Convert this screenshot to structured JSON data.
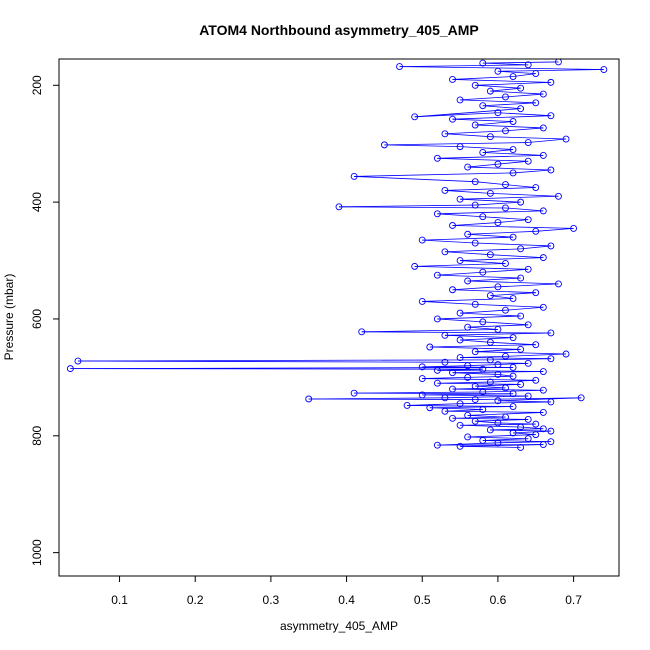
{
  "chart_data": {
    "type": "scatter",
    "connected": true,
    "title": "ATOM4 Northbound asymmetry_405_AMP",
    "xlabel": "asymmetry_405_AMP",
    "ylabel": "Pressure (mbar)",
    "xlim": [
      0.02,
      0.76
    ],
    "ylim": [
      1040,
      155
    ],
    "y_inverted": true,
    "x_ticks": [
      0.1,
      0.2,
      0.3,
      0.4,
      0.5,
      0.6,
      0.7
    ],
    "y_ticks": [
      200,
      400,
      600,
      800,
      1000
    ],
    "grid": false,
    "legend": "none",
    "marker": "open-circle",
    "series": [
      {
        "color": "#0000ff",
        "points": [
          [
            0.63,
            820
          ],
          [
            0.55,
            818
          ],
          [
            0.66,
            815
          ],
          [
            0.52,
            816
          ],
          [
            0.6,
            812
          ],
          [
            0.67,
            810
          ],
          [
            0.58,
            808
          ],
          [
            0.64,
            805
          ],
          [
            0.56,
            802
          ],
          [
            0.65,
            798
          ],
          [
            0.62,
            795
          ],
          [
            0.67,
            792
          ],
          [
            0.59,
            790
          ],
          [
            0.66,
            788
          ],
          [
            0.63,
            785
          ],
          [
            0.55,
            782
          ],
          [
            0.65,
            780
          ],
          [
            0.6,
            778
          ],
          [
            0.57,
            775
          ],
          [
            0.64,
            772
          ],
          [
            0.54,
            770
          ],
          [
            0.61,
            768
          ],
          [
            0.56,
            765
          ],
          [
            0.66,
            760
          ],
          [
            0.53,
            758
          ],
          [
            0.58,
            755
          ],
          [
            0.51,
            752
          ],
          [
            0.62,
            750
          ],
          [
            0.48,
            748
          ],
          [
            0.55,
            745
          ],
          [
            0.67,
            742
          ],
          [
            0.6,
            740
          ],
          [
            0.71,
            735
          ],
          [
            0.57,
            738
          ],
          [
            0.35,
            737
          ],
          [
            0.53,
            735
          ],
          [
            0.64,
            732
          ],
          [
            0.5,
            730
          ],
          [
            0.62,
            728
          ],
          [
            0.41,
            727
          ],
          [
            0.58,
            725
          ],
          [
            0.66,
            722
          ],
          [
            0.54,
            720
          ],
          [
            0.61,
            718
          ],
          [
            0.57,
            715
          ],
          [
            0.63,
            712
          ],
          [
            0.52,
            710
          ],
          [
            0.59,
            708
          ],
          [
            0.65,
            705
          ],
          [
            0.5,
            702
          ],
          [
            0.56,
            700
          ],
          [
            0.62,
            698
          ],
          [
            0.6,
            695
          ],
          [
            0.54,
            692
          ],
          [
            0.66,
            690
          ],
          [
            0.52,
            688
          ],
          [
            0.58,
            686
          ],
          [
            0.035,
            685
          ],
          [
            0.62,
            683
          ],
          [
            0.5,
            682
          ],
          [
            0.56,
            680
          ],
          [
            0.6,
            678
          ],
          [
            0.64,
            676
          ],
          [
            0.53,
            674
          ],
          [
            0.045,
            672
          ],
          [
            0.59,
            670
          ],
          [
            0.67,
            668
          ],
          [
            0.55,
            666
          ],
          [
            0.61,
            664
          ],
          [
            0.69,
            660
          ],
          [
            0.57,
            656
          ],
          [
            0.63,
            652
          ],
          [
            0.51,
            648
          ],
          [
            0.65,
            644
          ],
          [
            0.59,
            640
          ],
          [
            0.55,
            636
          ],
          [
            0.62,
            632
          ],
          [
            0.53,
            628
          ],
          [
            0.67,
            624
          ],
          [
            0.42,
            622
          ],
          [
            0.6,
            618
          ],
          [
            0.56,
            614
          ],
          [
            0.64,
            610
          ],
          [
            0.58,
            605
          ],
          [
            0.52,
            600
          ],
          [
            0.63,
            595
          ],
          [
            0.55,
            590
          ],
          [
            0.61,
            585
          ],
          [
            0.66,
            580
          ],
          [
            0.57,
            575
          ],
          [
            0.5,
            570
          ],
          [
            0.62,
            565
          ],
          [
            0.59,
            560
          ],
          [
            0.65,
            555
          ],
          [
            0.54,
            550
          ],
          [
            0.6,
            545
          ],
          [
            0.68,
            540
          ],
          [
            0.56,
            535
          ],
          [
            0.63,
            530
          ],
          [
            0.52,
            525
          ],
          [
            0.58,
            520
          ],
          [
            0.64,
            515
          ],
          [
            0.49,
            510
          ],
          [
            0.61,
            505
          ],
          [
            0.55,
            500
          ],
          [
            0.66,
            495
          ],
          [
            0.59,
            490
          ],
          [
            0.53,
            485
          ],
          [
            0.63,
            480
          ],
          [
            0.67,
            475
          ],
          [
            0.57,
            470
          ],
          [
            0.5,
            465
          ],
          [
            0.62,
            460
          ],
          [
            0.56,
            455
          ],
          [
            0.65,
            450
          ],
          [
            0.7,
            445
          ],
          [
            0.54,
            440
          ],
          [
            0.6,
            435
          ],
          [
            0.64,
            430
          ],
          [
            0.58,
            425
          ],
          [
            0.52,
            420
          ],
          [
            0.66,
            415
          ],
          [
            0.61,
            410
          ],
          [
            0.39,
            408
          ],
          [
            0.57,
            405
          ],
          [
            0.63,
            400
          ],
          [
            0.55,
            395
          ],
          [
            0.68,
            390
          ],
          [
            0.59,
            385
          ],
          [
            0.53,
            380
          ],
          [
            0.65,
            375
          ],
          [
            0.61,
            370
          ],
          [
            0.57,
            365
          ],
          [
            0.41,
            356
          ],
          [
            0.62,
            350
          ],
          [
            0.67,
            345
          ],
          [
            0.56,
            340
          ],
          [
            0.6,
            335
          ],
          [
            0.64,
            330
          ],
          [
            0.52,
            325
          ],
          [
            0.66,
            320
          ],
          [
            0.58,
            315
          ],
          [
            0.62,
            310
          ],
          [
            0.55,
            305
          ],
          [
            0.45,
            302
          ],
          [
            0.64,
            298
          ],
          [
            0.69,
            292
          ],
          [
            0.59,
            288
          ],
          [
            0.53,
            283
          ],
          [
            0.61,
            278
          ],
          [
            0.66,
            273
          ],
          [
            0.57,
            268
          ],
          [
            0.62,
            262
          ],
          [
            0.54,
            258
          ],
          [
            0.67,
            252
          ],
          [
            0.6,
            247
          ],
          [
            0.49,
            254
          ],
          [
            0.63,
            240
          ],
          [
            0.58,
            235
          ],
          [
            0.65,
            230
          ],
          [
            0.55,
            225
          ],
          [
            0.61,
            220
          ],
          [
            0.66,
            215
          ],
          [
            0.59,
            210
          ],
          [
            0.63,
            205
          ],
          [
            0.57,
            200
          ],
          [
            0.67,
            195
          ],
          [
            0.54,
            190
          ],
          [
            0.62,
            185
          ],
          [
            0.65,
            180
          ],
          [
            0.6,
            176
          ],
          [
            0.74,
            173
          ],
          [
            0.47,
            168
          ],
          [
            0.64,
            165
          ],
          [
            0.58,
            162
          ],
          [
            0.68,
            160
          ]
        ]
      }
    ]
  }
}
